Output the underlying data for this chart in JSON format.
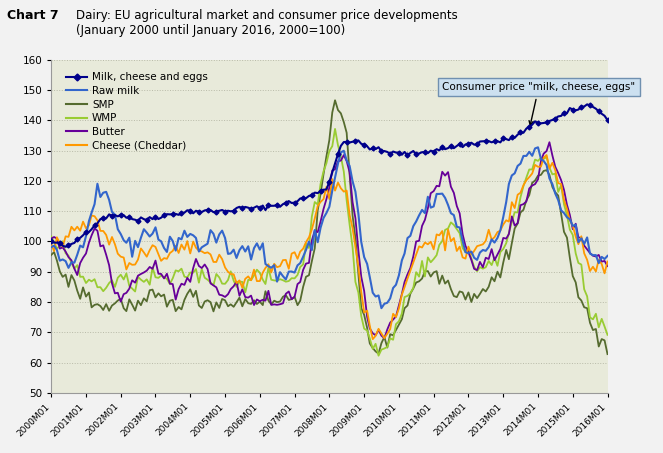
{
  "title_prefix": "Chart 7",
  "title_main": "Dairy: EU agricultural market and consumer price developments\n(January 2000 until January 2016, 2000=100)",
  "annotation_text": "Consumer price \"milk, cheese, eggs\"",
  "ylim": [
    50,
    160
  ],
  "yticks": [
    50,
    60,
    70,
    80,
    90,
    100,
    110,
    120,
    130,
    140,
    150,
    160
  ],
  "bg_color": "#dde0cc",
  "plot_bg": "#e8eada",
  "grid_color": "#b8baa8",
  "series_colors": {
    "milk_cheese_eggs": "#00008B",
    "raw_milk": "#3366cc",
    "smp": "#556B2F",
    "wmp": "#99cc33",
    "butter": "#660099",
    "cheese": "#FF9900"
  },
  "legend_labels": [
    "Milk, cheese and eggs",
    "Raw milk",
    "SMP",
    "WMP",
    "Butter",
    "Cheese (Cheddar)"
  ],
  "x_tick_labels": [
    "2000M01",
    "2001M01",
    "2002M01",
    "2003M01",
    "2004M01",
    "2005M01",
    "2006M01",
    "2007M01",
    "2008M01",
    "2009M01",
    "2010M01",
    "2011M01",
    "2012M01",
    "2013M01",
    "2014M01",
    "2015M01",
    "2016M01"
  ],
  "fig_bg": "#f2f2f2"
}
